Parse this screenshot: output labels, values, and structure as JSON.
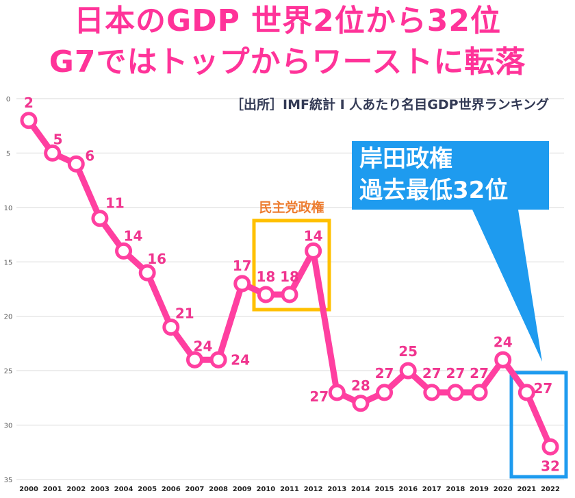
{
  "header": {
    "title_line1": "日本のGDP 世界2位から32位",
    "title_line2": "G7ではトップからワーストに転落",
    "source": "［出所］IMF統計 I 人あたり名目GDP世界ランキング"
  },
  "annotations": {
    "dpj_label": "民主党政権",
    "kishida_line1": "岸田政権",
    "kishida_line2": "過去最低32位"
  },
  "colors": {
    "series": "#ff3fa0",
    "label": "#f0358f",
    "dpj_box": "#ffc000",
    "dpj_label": "#ed7d31",
    "kishida": "#1e9bef",
    "gridline": "#d9d9d9"
  },
  "chart_data": {
    "type": "line",
    "title": "日本のGDP 世界2位から32位",
    "x": [
      "2000",
      "2001",
      "2002",
      "2003",
      "2004",
      "2005",
      "2006",
      "2007",
      "2008",
      "2009",
      "2010",
      "2011",
      "2012",
      "2013",
      "2014",
      "2015",
      "2016",
      "2017",
      "2018",
      "2019",
      "2020",
      "2021",
      "2022"
    ],
    "series": [
      {
        "values": [
          2,
          5,
          6,
          11,
          14,
          16,
          21,
          24,
          24,
          17,
          18,
          18,
          14,
          27,
          28,
          27,
          25,
          27,
          27,
          27,
          24,
          27,
          32
        ]
      }
    ],
    "yticks": [
      0,
      5,
      10,
      15,
      20,
      25,
      30,
      35
    ],
    "ylim": [
      0,
      35
    ],
    "y_inverted": true,
    "grid": true
  }
}
